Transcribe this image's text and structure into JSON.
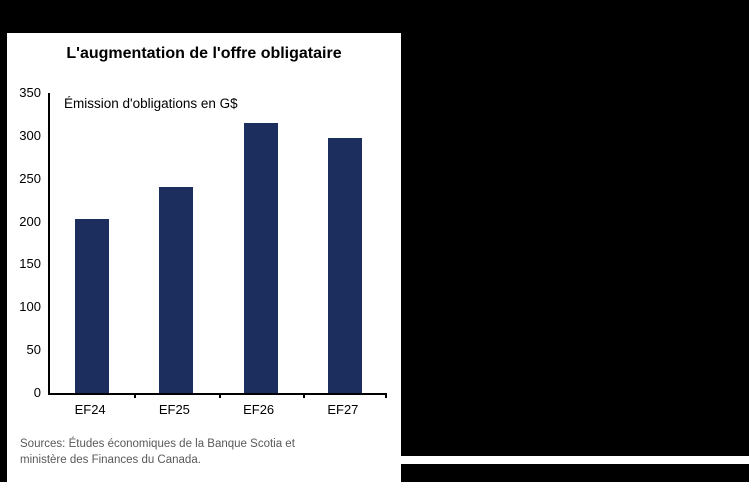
{
  "panel": {
    "title": "L'augmentation de l'offre obligataire",
    "source_lines": [
      "Sources: Études économiques de la Banque Scotia et",
      "ministère des Finances du Canada."
    ]
  },
  "chart_data": {
    "type": "bar",
    "title": "L'augmentation de l'offre obligataire",
    "annotation": "Émission d'obligations en G$",
    "categories": [
      "EF24",
      "EF25",
      "EF26",
      "EF27"
    ],
    "values": [
      203,
      240,
      315,
      298
    ],
    "xlabel": "",
    "ylabel": "Émission d'obligations en G$",
    "ylim": [
      0,
      350
    ],
    "ytick_step": 50,
    "ytick_labels": [
      "350",
      "300",
      "250",
      "200",
      "150",
      "100",
      "50",
      "0"
    ],
    "grid": false,
    "legend": "none",
    "bar_color": "#1b2e5e",
    "source": "Sources: Études économiques de la Banque Scotia et ministère des Finances du Canada."
  },
  "colors": {
    "page_bg": "#000000",
    "panel_bg": "#ffffff",
    "bar": "#1b2e5e",
    "axis": "#000000",
    "source_text": "#595959"
  }
}
